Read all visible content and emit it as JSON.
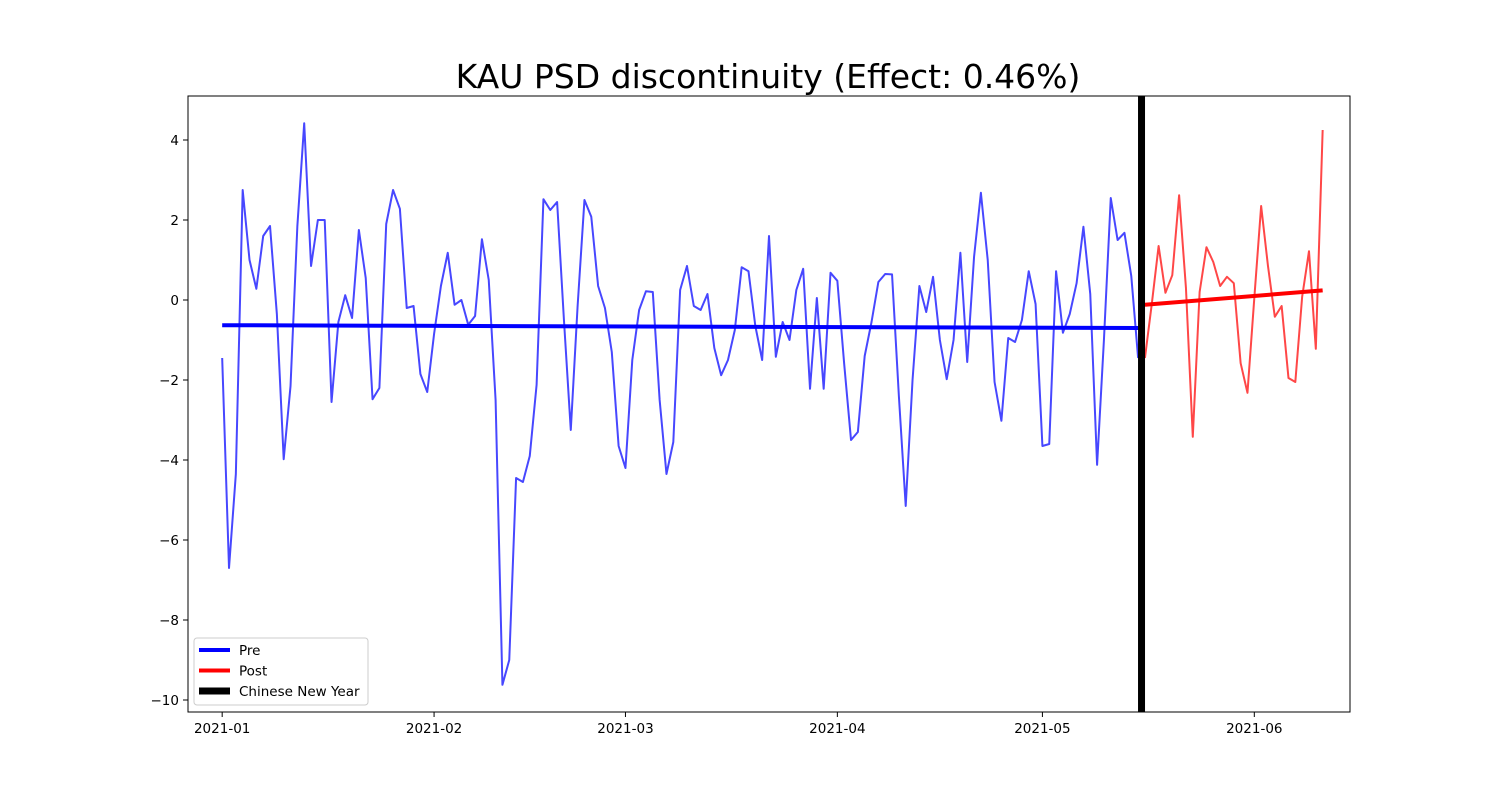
{
  "chart_data": {
    "type": "line",
    "title": "KAU PSD discontinuity (Effect: 0.46%)",
    "xlabel": "",
    "ylabel": "",
    "xlim": [
      "2020-12-27",
      "2021-06-15"
    ],
    "ylim": [
      -10.3,
      5.1
    ],
    "x_ticks": [
      "2021-01",
      "2021-02",
      "2021-03",
      "2021-04",
      "2021-05",
      "2021-06"
    ],
    "y_ticks": [
      4,
      2,
      0,
      -2,
      -4,
      -6,
      -8,
      -10
    ],
    "y_tick_labels": [
      "4",
      "2",
      "0",
      "−2",
      "−4",
      "−6",
      "−8",
      "−10"
    ],
    "grid": false,
    "legend_position": "lower-left",
    "colors": {
      "pre": "#0000ff",
      "post": "#ff0000",
      "cny": "#000000"
    },
    "legend": [
      "Pre",
      "Post",
      "Chinese New Year"
    ],
    "series": [
      {
        "name": "Pre",
        "start": "2021-01-01",
        "values": [
          -1.45,
          -6.7,
          -4.35,
          2.75,
          1.0,
          0.28,
          1.6,
          1.85,
          -0.35,
          -3.98,
          -2.15,
          1.85,
          4.42,
          0.85,
          2.0,
          2.0,
          -2.55,
          -0.55,
          0.12,
          -0.45,
          1.75,
          0.55,
          -2.48,
          -2.2,
          1.9,
          2.75,
          2.28,
          -0.2,
          -0.15,
          -1.85,
          -2.3,
          -0.85,
          0.35,
          1.18,
          -0.12,
          0.0,
          -0.62,
          -0.4,
          1.52,
          0.5,
          -2.5,
          -9.62,
          -9.0,
          -4.45,
          -4.55,
          -3.9,
          -2.12,
          2.52,
          2.25,
          2.45,
          -0.5,
          -3.25,
          -0.15,
          2.5,
          2.08,
          0.35,
          -0.2,
          -1.3,
          -3.65,
          -4.2,
          -1.5,
          -0.25,
          0.22,
          0.2,
          -2.5,
          -4.35,
          -3.55,
          0.25,
          0.85,
          -0.15,
          -0.25,
          0.15,
          -1.2,
          -1.88,
          -1.5,
          -0.75,
          0.82,
          0.72,
          -0.65,
          -1.5,
          1.6,
          -1.42,
          -0.55,
          -1.0,
          0.25,
          0.78,
          -2.22,
          0.05,
          -2.22,
          0.68,
          0.48,
          -1.6,
          -3.5,
          -3.3,
          -1.4,
          -0.55,
          0.45,
          0.65,
          0.64,
          -2.4,
          -5.15,
          -2.0,
          0.35,
          -0.3,
          0.58,
          -1.0,
          -1.98,
          -1.0,
          1.18,
          -1.55,
          1.08,
          2.68,
          1.0,
          -2.05,
          -3.02,
          -0.95,
          -1.05,
          -0.5,
          0.72,
          -0.1,
          -3.65,
          -3.6,
          0.72,
          -0.82,
          -0.35,
          0.42,
          1.83,
          0.15,
          -4.12,
          -1.0,
          2.55,
          1.5,
          1.68,
          0.6,
          -1.45
        ]
      },
      {
        "name": "Post",
        "start": "2021-05-16",
        "values": [
          -1.45,
          -0.1,
          1.35,
          0.18,
          0.62,
          2.62,
          0.3,
          -3.42,
          0.2,
          1.32,
          0.95,
          0.35,
          0.58,
          0.42,
          -1.58,
          -2.32,
          0.05,
          2.35,
          0.85,
          -0.42,
          -0.15,
          -1.95,
          -2.05,
          0.08,
          1.22,
          -1.22,
          4.25
        ]
      }
    ],
    "fits": [
      {
        "series": "Pre",
        "from": "2021-01-01",
        "to": "2021-05-15",
        "y_from": -0.63,
        "y_to": -0.7
      },
      {
        "series": "Post",
        "from": "2021-05-16",
        "to": "2021-06-11",
        "y_from": -0.12,
        "y_to": 0.24
      }
    ],
    "event_line": {
      "label": "Chinese New Year",
      "x": "2021-05-15.5"
    }
  }
}
